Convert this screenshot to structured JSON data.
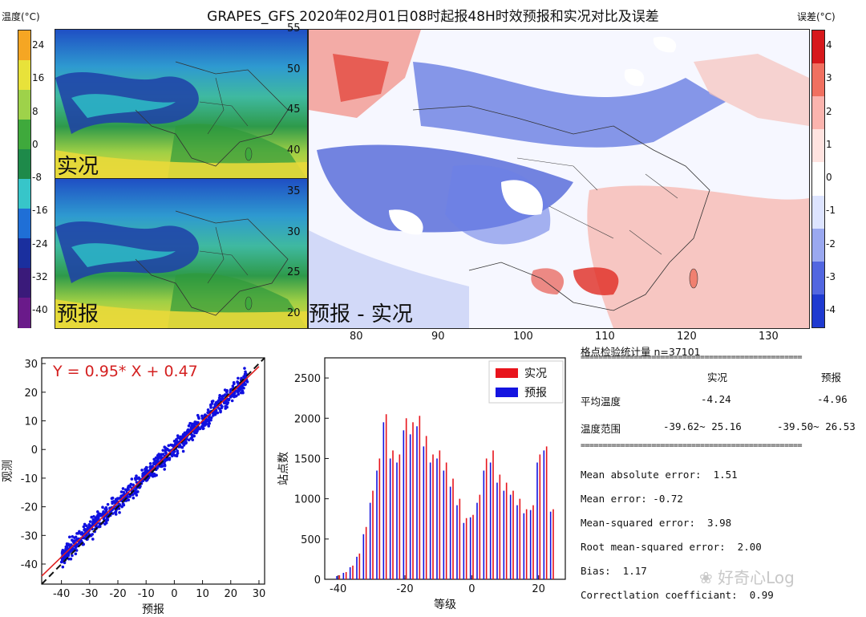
{
  "title": "GRAPES_GFS  2020年02月01日08时起报48H时效预报和实况对比及误差",
  "temp_colorbar": {
    "label": "温度(°C)",
    "ticks": [
      "24",
      "16",
      "8",
      "0",
      "-8",
      "-16",
      "-24",
      "-32",
      "-40"
    ],
    "colors": [
      "#f5a623",
      "#e8e23a",
      "#9ed24a",
      "#3fa93c",
      "#1e8a4a",
      "#37c5c9",
      "#1f6fd6",
      "#1a2f9e",
      "#3a1a7a",
      "#6a1a8a"
    ]
  },
  "error_colorbar": {
    "label": "误差(°C)",
    "ticks": [
      "4",
      "3",
      "2",
      "1",
      "0",
      "-1",
      "-2",
      "-3",
      "-4"
    ],
    "colors": [
      "#d7191c",
      "#f07060",
      "#fbb4ae",
      "#ffe3e0",
      "#ffffff",
      "#dde4ff",
      "#9aa8f0",
      "#5266e0",
      "#1f3ad0"
    ]
  },
  "maps": {
    "obs_label": "实况",
    "fcst_label": "预报",
    "diff_label": "预报 - 实况",
    "lat_ticks": [
      "55",
      "50",
      "45",
      "40",
      "35",
      "30",
      "25",
      "20"
    ],
    "lon_ticks": [
      "80",
      "90",
      "100",
      "110",
      "120",
      "130"
    ]
  },
  "chart_data": [
    {
      "type": "scatter",
      "title": "",
      "annotation": "Y = 0.95* X + 0.47",
      "xlabel": "预报",
      "ylabel": "观测",
      "xlim": [
        -47,
        32
      ],
      "ylim": [
        -47,
        32
      ],
      "xticks": [
        -40,
        -30,
        -20,
        -10,
        0,
        10,
        20,
        30
      ],
      "yticks": [
        -40,
        -30,
        -20,
        -10,
        0,
        10,
        20,
        30
      ],
      "fit": {
        "slope": 0.95,
        "intercept": 0.47
      },
      "reference_line": "y = x (black dashed)",
      "series": [
        {
          "color": "#1010e0",
          "x_range": [
            -40,
            26
          ]
        }
      ]
    },
    {
      "type": "bar",
      "title": "",
      "xlabel": "等级",
      "ylabel": "站点数",
      "xlim": [
        -44,
        28
      ],
      "ylim": [
        0,
        2750
      ],
      "xticks": [
        -40,
        -20,
        0,
        20
      ],
      "yticks": [
        0,
        500,
        1000,
        1500,
        2000,
        2500
      ],
      "x": [
        -40,
        -38,
        -36,
        -34,
        -32,
        -30,
        -28,
        -26,
        -24,
        -22,
        -20,
        -18,
        -16,
        -14,
        -12,
        -10,
        -8,
        -6,
        -4,
        -2,
        0,
        2,
        4,
        6,
        8,
        10,
        12,
        14,
        16,
        18,
        20,
        22,
        24
      ],
      "series": [
        {
          "name": "实况",
          "color": "#e8141c",
          "values": [
            50,
            90,
            170,
            320,
            650,
            1100,
            1500,
            2050,
            1600,
            1550,
            2000,
            1950,
            2030,
            1780,
            1550,
            1600,
            1450,
            1250,
            1000,
            760,
            800,
            1050,
            1500,
            1600,
            1300,
            1200,
            1100,
            1000,
            870,
            920,
            1550,
            1650,
            870
          ]
        },
        {
          "name": "预报",
          "color": "#1414e0",
          "values": [
            40,
            80,
            150,
            280,
            560,
            950,
            1350,
            1950,
            1500,
            1450,
            1850,
            1800,
            1900,
            1650,
            1450,
            1500,
            1350,
            1150,
            920,
            700,
            770,
            950,
            1350,
            1450,
            1200,
            1100,
            1050,
            920,
            820,
            860,
            1450,
            1600,
            840
          ]
        }
      ]
    }
  ],
  "stats": {
    "header": "格点检验统计量 n=37101",
    "rule": "==================================================",
    "col_obs": "实况",
    "col_fcst": "预报",
    "row1_label": "平均温度",
    "row1_obs": "-4.24",
    "row1_fcst": "-4.96",
    "row2_label": "温度范围",
    "row2_obs": "-39.62~ 25.16",
    "row2_fcst": "-39.50~ 26.53",
    "mae": "Mean absolute error:  1.51",
    "me": "Mean error: -0.72",
    "mse": "Mean-squared error:  3.98",
    "rmse": "Root mean-squared error:  2.00",
    "bias": "Bias:  1.17",
    "corr": "Correctlation coefficiant:  0.99"
  },
  "watermark": "好奇心Log"
}
